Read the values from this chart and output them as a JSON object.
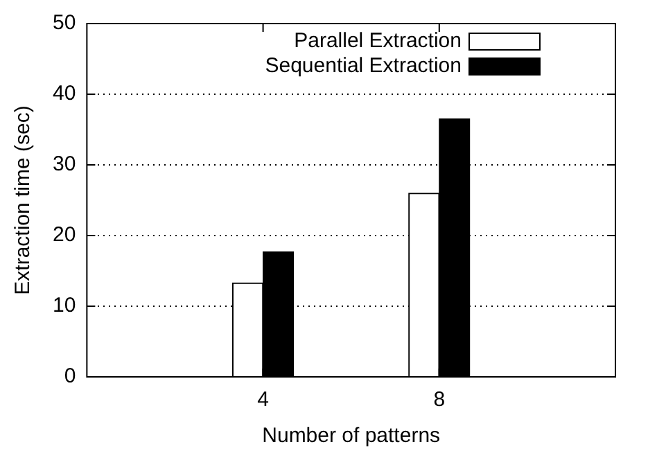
{
  "chart_data": {
    "type": "bar",
    "xlabel": "Number of patterns",
    "ylabel": "Extraction time (sec)",
    "x": [
      4,
      8
    ],
    "xlim": [
      0,
      12
    ],
    "xticks": [
      4,
      8
    ],
    "ylim": [
      0,
      50
    ],
    "yticks": [
      0,
      10,
      20,
      30,
      40,
      50
    ],
    "series": [
      {
        "name": "Parallel Extraction",
        "color": "#ffffff",
        "values": [
          13.3,
          26
        ]
      },
      {
        "name": "Sequential Extraction",
        "color": "#000000",
        "values": [
          17.7,
          36.5
        ]
      }
    ],
    "grid": "y",
    "legend": "top right"
  }
}
